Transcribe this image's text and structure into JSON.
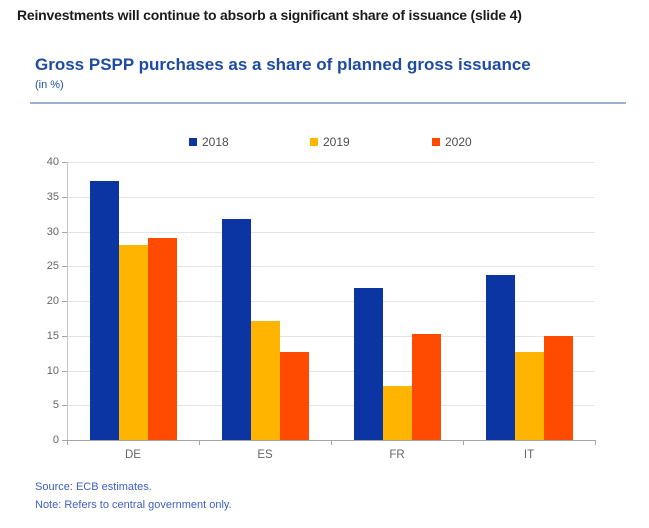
{
  "header": {
    "title": "Reinvestments will continue to absorb a significant share of issuance (slide 4)"
  },
  "chart": {
    "title": "Gross PSPP purchases as a share of planned gross issuance",
    "subtitle": "(in %)",
    "source": "Source: ECB estimates.",
    "note": "Note: Refers to central government only."
  },
  "chart_data": {
    "type": "bar",
    "title": "Gross PSPP purchases as a share of planned gross issuance",
    "unit": "(in %)",
    "categories": [
      "DE",
      "ES",
      "FR",
      "IT"
    ],
    "series": [
      {
        "name": "2018",
        "color": "#0a35a3",
        "values": [
          37.2,
          31.8,
          21.9,
          23.8
        ]
      },
      {
        "name": "2019",
        "color": "#ffb400",
        "values": [
          28.0,
          17.1,
          7.8,
          12.7
        ]
      },
      {
        "name": "2020",
        "color": "#ff4b00",
        "values": [
          29.0,
          12.6,
          15.2,
          15.0
        ]
      }
    ],
    "ylim": [
      0,
      40
    ],
    "ytick_step": 5,
    "grid": true,
    "legend_position": "top",
    "colors": {
      "title_blue": "#1e4ca1",
      "note_blue": "#3e5fc6",
      "axis_gray": "#a6a6a6",
      "gridline_gray": "#e4e4e4",
      "label_gray": "#666666"
    }
  }
}
